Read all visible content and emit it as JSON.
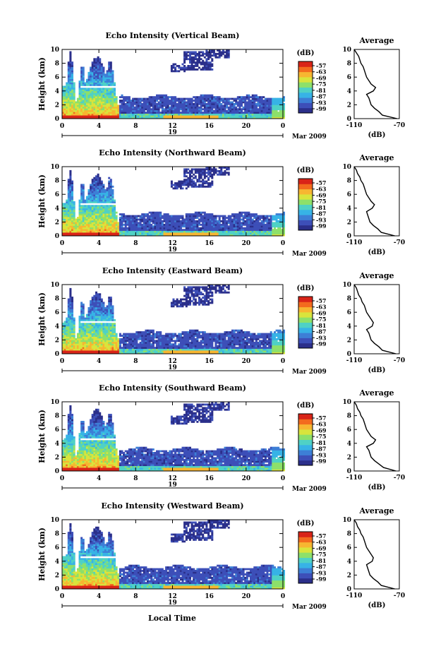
{
  "figure": {
    "x_axis_label": "Local Time",
    "color_unit": "(dB)",
    "date_label": "Mar 2009",
    "date_day": "19",
    "avg_title": "Average",
    "avg_xlabel": "(dB)"
  },
  "colorbar": {
    "ticks": [
      "-57",
      "-63",
      "-69",
      "-75",
      "-81",
      "-87",
      "-93",
      "-99"
    ],
    "colors": [
      "#2b2f8a",
      "#3d4fb8",
      "#3d7fd6",
      "#37b3e6",
      "#4fd1c5",
      "#8de06a",
      "#d9e43c",
      "#f7b631",
      "#f36b1e",
      "#d92418"
    ]
  },
  "chart_data": [
    {
      "type": "heatmap",
      "title": "Echo Intensity (Vertical Beam)",
      "ylabel": "Height (km)",
      "xlabel": "Local Time",
      "x_ticks": [
        "0",
        "4",
        "8",
        "12",
        "16",
        "20",
        "0"
      ],
      "y_ticks": [
        "0",
        "2",
        "4",
        "6",
        "8",
        "10"
      ],
      "xlim": [
        0,
        24
      ],
      "ylim": [
        0,
        10
      ],
      "color_range_db": [
        -99,
        -57
      ],
      "avg_profile": {
        "title": "Average",
        "xlabel": "(dB)",
        "x_ticks": [
          "-110",
          "-70"
        ],
        "xlim": [
          -110,
          -70
        ],
        "height": [
          0,
          0.5,
          1,
          1.5,
          2,
          2.5,
          3,
          3.5,
          4,
          4.5,
          5,
          5.5,
          6,
          6.5,
          7,
          7.5,
          8,
          8.5,
          9,
          9.5,
          10
        ],
        "db": [
          -72,
          -85,
          -88,
          -92,
          -95,
          -96,
          -97,
          -99,
          -93,
          -91,
          -95,
          -97,
          -99,
          -100,
          -101,
          -102,
          -104,
          -105,
          -106,
          -108,
          -110
        ]
      }
    },
    {
      "type": "heatmap",
      "title": "Echo Intensity (Northward Beam)",
      "ylabel": "Height (km)",
      "xlabel": "Local Time",
      "x_ticks": [
        "0",
        "4",
        "8",
        "12",
        "16",
        "20",
        "0"
      ],
      "y_ticks": [
        "0",
        "2",
        "4",
        "6",
        "8",
        "10"
      ],
      "xlim": [
        0,
        24
      ],
      "ylim": [
        0,
        10
      ],
      "color_range_db": [
        -99,
        -57
      ],
      "avg_profile": {
        "title": "Average",
        "xlabel": "(dB)",
        "x_ticks": [
          "-110",
          "-70"
        ],
        "xlim": [
          -110,
          -70
        ],
        "height": [
          0,
          0.5,
          1,
          1.5,
          2,
          2.5,
          3,
          3.5,
          4,
          4.5,
          5,
          5.5,
          6,
          6.5,
          7,
          7.5,
          8,
          8.5,
          9,
          9.5,
          10
        ],
        "db": [
          -74,
          -86,
          -89,
          -93,
          -96,
          -97,
          -98,
          -99,
          -94,
          -92,
          -95,
          -97,
          -99,
          -100,
          -101,
          -102,
          -104,
          -105,
          -107,
          -108,
          -110
        ]
      }
    },
    {
      "type": "heatmap",
      "title": "Echo Intensity (Eastward Beam)",
      "ylabel": "Height (km)",
      "xlabel": "Local Time",
      "x_ticks": [
        "0",
        "4",
        "8",
        "12",
        "16",
        "20",
        "0"
      ],
      "y_ticks": [
        "0",
        "2",
        "4",
        "6",
        "8",
        "10"
      ],
      "xlim": [
        0,
        24
      ],
      "ylim": [
        0,
        10
      ],
      "color_range_db": [
        -99,
        -57
      ],
      "avg_profile": {
        "title": "Average",
        "xlabel": "(dB)",
        "x_ticks": [
          "-110",
          "-70"
        ],
        "xlim": [
          -110,
          -70
        ],
        "height": [
          0,
          0.5,
          1,
          1.5,
          2,
          2.5,
          3,
          3.5,
          4,
          4.5,
          5,
          5.5,
          6,
          6.5,
          7,
          7.5,
          8,
          8.5,
          9,
          9.5,
          10
        ],
        "db": [
          -73,
          -85,
          -88,
          -92,
          -95,
          -96,
          -97,
          -99,
          -94,
          -93,
          -95,
          -97,
          -99,
          -100,
          -101,
          -103,
          -104,
          -106,
          -107,
          -108,
          -110
        ]
      }
    },
    {
      "type": "heatmap",
      "title": "Echo Intensity (Southward Beam)",
      "ylabel": "Height (km)",
      "xlabel": "Local Time",
      "x_ticks": [
        "0",
        "4",
        "8",
        "12",
        "16",
        "20",
        "0"
      ],
      "y_ticks": [
        "0",
        "2",
        "4",
        "6",
        "8",
        "10"
      ],
      "xlim": [
        0,
        24
      ],
      "ylim": [
        0,
        10
      ],
      "color_range_db": [
        -99,
        -57
      ],
      "avg_profile": {
        "title": "Average",
        "xlabel": "(dB)",
        "x_ticks": [
          "-110",
          "-70"
        ],
        "xlim": [
          -110,
          -70
        ],
        "height": [
          0,
          0.5,
          1,
          1.5,
          2,
          2.5,
          3,
          3.5,
          4,
          4.5,
          5,
          5.5,
          6,
          6.5,
          7,
          7.5,
          8,
          8.5,
          9,
          9.5,
          10
        ],
        "db": [
          -73,
          -84,
          -88,
          -92,
          -95,
          -96,
          -97,
          -99,
          -93,
          -91,
          -95,
          -97,
          -99,
          -100,
          -101,
          -102,
          -104,
          -105,
          -107,
          -108,
          -110
        ]
      }
    },
    {
      "type": "heatmap",
      "title": "Echo Intensity (Westward Beam)",
      "ylabel": "Height (km)",
      "xlabel": "Local Time",
      "x_ticks": [
        "0",
        "4",
        "8",
        "12",
        "16",
        "20",
        "0"
      ],
      "y_ticks": [
        "0",
        "2",
        "4",
        "6",
        "8",
        "10"
      ],
      "xlim": [
        0,
        24
      ],
      "ylim": [
        0,
        10
      ],
      "color_range_db": [
        -99,
        -57
      ],
      "avg_profile": {
        "title": "Average",
        "xlabel": "(dB)",
        "x_ticks": [
          "-110",
          "-70"
        ],
        "xlim": [
          -110,
          -70
        ],
        "height": [
          0,
          0.5,
          1,
          1.5,
          2,
          2.5,
          3,
          3.5,
          4,
          4.5,
          5,
          5.5,
          6,
          6.5,
          7,
          7.5,
          8,
          8.5,
          9,
          9.5,
          10
        ],
        "db": [
          -74,
          -86,
          -89,
          -93,
          -96,
          -97,
          -98,
          -99,
          -94,
          -93,
          -95,
          -97,
          -99,
          -100,
          -101,
          -102,
          -104,
          -105,
          -107,
          -108,
          -110
        ]
      }
    }
  ]
}
